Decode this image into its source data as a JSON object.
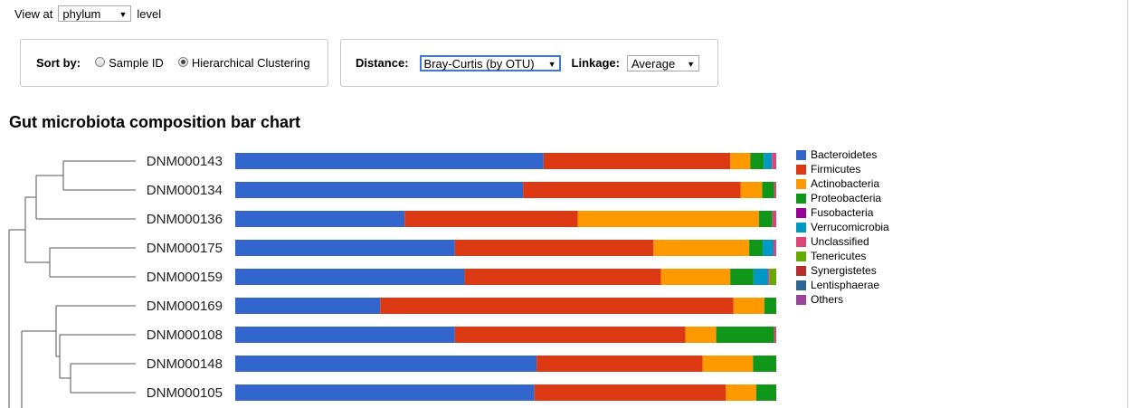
{
  "controls": {
    "view_at_label": "View at",
    "level_value": "phylum",
    "level_suffix": "level",
    "sort_by_label": "Sort by:",
    "sort_options": [
      "Sample ID",
      "Hierarchical Clustering"
    ],
    "sort_selected": "Hierarchical Clustering",
    "distance_label": "Distance:",
    "distance_value": "Bray-Curtis (by OTU)",
    "linkage_label": "Linkage:",
    "linkage_value": "Average"
  },
  "chart_title": "Gut microbiota composition bar chart",
  "chart_data": {
    "type": "bar",
    "orientation": "horizontal",
    "stacked": true,
    "normalized": true,
    "categories": [
      "DNM000143",
      "DNM000134",
      "DNM000136",
      "DNM000175",
      "DNM000159",
      "DNM000169",
      "DNM000108",
      "DNM000148",
      "DNM000105"
    ],
    "series": [
      {
        "name": "Bacteroidetes",
        "color": "#3366cc",
        "values": [
          0.57,
          0.532,
          0.313,
          0.406,
          0.424,
          0.268,
          0.406,
          0.557,
          0.553
        ]
      },
      {
        "name": "Firmicutes",
        "color": "#dc3912",
        "values": [
          0.345,
          0.402,
          0.32,
          0.367,
          0.363,
          0.653,
          0.426,
          0.307,
          0.354
        ]
      },
      {
        "name": "Actinobacteria",
        "color": "#ff9900",
        "values": [
          0.037,
          0.04,
          0.335,
          0.177,
          0.128,
          0.057,
          0.057,
          0.093,
          0.056
        ]
      },
      {
        "name": "Proteobacteria",
        "color": "#109618",
        "values": [
          0.025,
          0.022,
          0.025,
          0.025,
          0.043,
          0.022,
          0.107,
          0.043,
          0.037
        ]
      },
      {
        "name": "Fusobacteria",
        "color": "#990099",
        "values": [
          0.0,
          0.0,
          0.0,
          0.0,
          0.0,
          0.0,
          0.0,
          0.0,
          0.0
        ]
      },
      {
        "name": "Verrucomicrobia",
        "color": "#0099c6",
        "values": [
          0.015,
          0.0,
          0.0,
          0.02,
          0.027,
          0.0,
          0.0,
          0.0,
          0.0
        ]
      },
      {
        "name": "Unclassified",
        "color": "#dd4477",
        "values": [
          0.008,
          0.004,
          0.007,
          0.005,
          0.003,
          0.0,
          0.004,
          0.0,
          0.0
        ]
      },
      {
        "name": "Tenericutes",
        "color": "#66aa00",
        "values": [
          0.0,
          0.0,
          0.0,
          0.0,
          0.012,
          0.0,
          0.0,
          0.0,
          0.0
        ]
      },
      {
        "name": "Synergistetes",
        "color": "#b82e2e",
        "values": [
          0.0,
          0.0,
          0.0,
          0.0,
          0.0,
          0.0,
          0.0,
          0.0,
          0.0
        ]
      },
      {
        "name": "Lentisphaerae",
        "color": "#316395",
        "values": [
          0.0,
          0.0,
          0.0,
          0.0,
          0.0,
          0.0,
          0.0,
          0.0,
          0.0
        ]
      },
      {
        "name": "Others",
        "color": "#994499",
        "values": [
          0.0,
          0.0,
          0.0,
          0.0,
          0.0,
          0.0,
          0.0,
          0.0,
          0.0
        ]
      }
    ],
    "legend_position": "right",
    "dendrogram": "left"
  }
}
